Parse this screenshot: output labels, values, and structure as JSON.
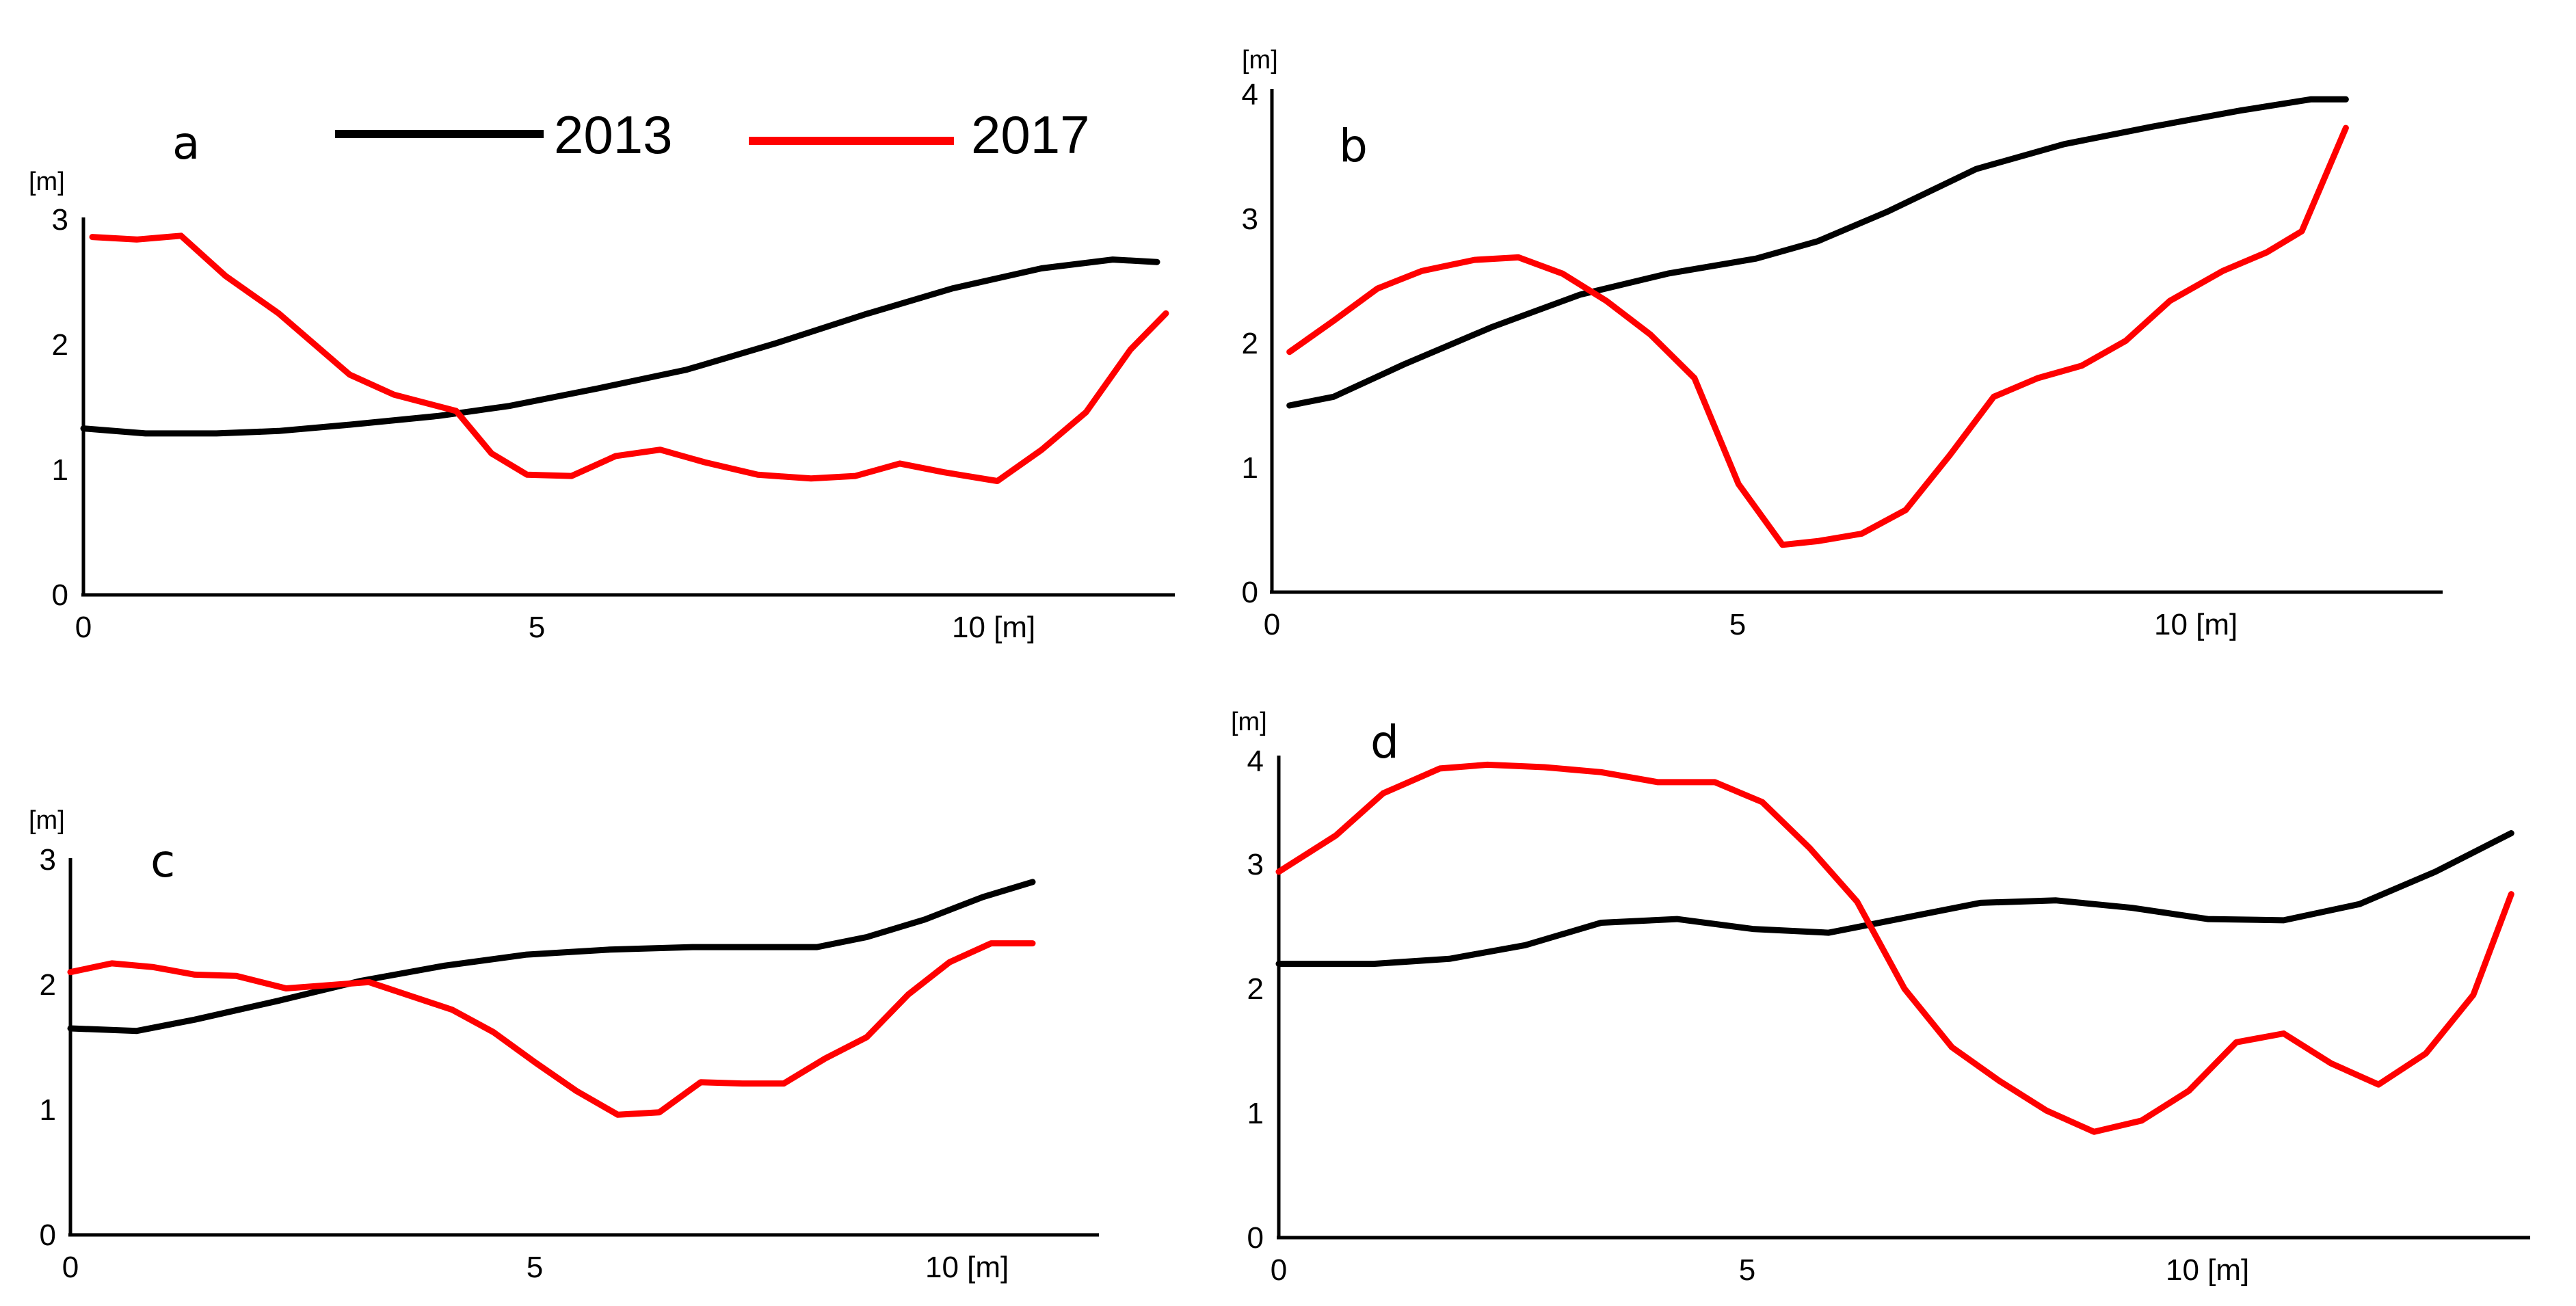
{
  "chart_data": [
    {
      "type": "line",
      "panel_label": "a",
      "y_unit_label": "[m]",
      "x_ticks": [
        "0",
        "5",
        "10 [m]"
      ],
      "y_ticks": [
        "0",
        "1",
        "2",
        "3"
      ],
      "xlim": [
        0,
        12.3
      ],
      "ylim": [
        0,
        3
      ],
      "series": [
        {
          "name": "2013",
          "color": "#000000",
          "x": [
            0,
            0.7,
            1.5,
            2.2,
            3.0,
            4.0,
            4.8,
            5.8,
            6.8,
            7.8,
            8.8,
            9.8,
            10.8,
            11.6,
            12.1
          ],
          "y": [
            1.33,
            1.29,
            1.29,
            1.31,
            1.36,
            1.43,
            1.51,
            1.65,
            1.8,
            2.01,
            2.24,
            2.45,
            2.61,
            2.68,
            2.66
          ]
        },
        {
          "name": "2017",
          "color": "#ff0000",
          "x": [
            0.1,
            0.6,
            1.1,
            1.6,
            2.2,
            3.0,
            3.5,
            4.2,
            4.6,
            5.0,
            5.5,
            6.0,
            6.5,
            7.0,
            7.6,
            8.2,
            8.7,
            9.2,
            9.7,
            10.3,
            10.8,
            11.3,
            11.8,
            12.2
          ],
          "y": [
            2.86,
            2.84,
            2.87,
            2.55,
            2.25,
            1.76,
            1.6,
            1.47,
            1.13,
            0.96,
            0.95,
            1.11,
            1.16,
            1.06,
            0.96,
            0.93,
            0.95,
            1.05,
            0.98,
            0.91,
            1.16,
            1.46,
            1.96,
            2.25
          ]
        }
      ]
    },
    {
      "type": "line",
      "panel_label": "b",
      "y_unit_label": "[m]",
      "x_ticks": [
        "0",
        "5",
        "10 [m]"
      ],
      "y_ticks": [
        "0",
        "1",
        "2",
        "3",
        "4"
      ],
      "xlim": [
        0,
        13.3
      ],
      "ylim": [
        0,
        4
      ],
      "series": [
        {
          "name": "2013",
          "color": "#000000",
          "x": [
            0.2,
            0.7,
            1.5,
            2.5,
            3.5,
            4.5,
            5.5,
            6.2,
            7.0,
            8.0,
            9.0,
            10.0,
            11.0,
            11.8,
            12.2
          ],
          "y": [
            1.5,
            1.57,
            1.83,
            2.13,
            2.39,
            2.56,
            2.68,
            2.82,
            3.06,
            3.4,
            3.6,
            3.74,
            3.87,
            3.96,
            3.96
          ]
        },
        {
          "name": "2017",
          "color": "#ff0000",
          "x": [
            0.2,
            0.7,
            1.2,
            1.7,
            2.3,
            2.8,
            3.3,
            3.8,
            4.3,
            4.8,
            5.3,
            5.8,
            6.2,
            6.7,
            7.2,
            7.7,
            8.2,
            8.7,
            9.2,
            9.7,
            10.2,
            10.8,
            11.3,
            11.7,
            12.2
          ],
          "y": [
            1.93,
            2.18,
            2.44,
            2.58,
            2.67,
            2.69,
            2.56,
            2.34,
            2.07,
            1.72,
            0.87,
            0.38,
            0.41,
            0.47,
            0.66,
            1.1,
            1.57,
            1.72,
            1.82,
            2.02,
            2.34,
            2.58,
            2.73,
            2.9,
            3.73
          ]
        }
      ]
    },
    {
      "type": "line",
      "panel_label": "c",
      "y_unit_label": "[m]",
      "x_ticks": [
        "0",
        "5",
        "10 [m]"
      ],
      "y_ticks": [
        "0",
        "1",
        "2",
        "3"
      ],
      "xlim": [
        0,
        12.4
      ],
      "ylim": [
        0,
        3
      ],
      "series": [
        {
          "name": "2013",
          "color": "#000000",
          "x": [
            0,
            0.8,
            1.5,
            2.5,
            3.5,
            4.5,
            5.5,
            6.5,
            7.5,
            8.5,
            9.0,
            9.6,
            10.3,
            11.0,
            11.6
          ],
          "y": [
            1.65,
            1.63,
            1.72,
            1.87,
            2.03,
            2.15,
            2.24,
            2.28,
            2.3,
            2.3,
            2.3,
            2.38,
            2.52,
            2.7,
            2.82
          ]
        },
        {
          "name": "2017",
          "color": "#ff0000",
          "x": [
            0,
            0.5,
            1.0,
            1.5,
            2.0,
            2.6,
            3.0,
            3.6,
            4.1,
            4.6,
            5.1,
            5.6,
            6.1,
            6.6,
            7.1,
            7.6,
            8.1,
            8.6,
            9.1,
            9.6,
            10.1,
            10.6,
            11.1,
            11.6
          ],
          "y": [
            2.1,
            2.17,
            2.14,
            2.08,
            2.07,
            1.97,
            1.99,
            2.02,
            1.91,
            1.8,
            1.62,
            1.38,
            1.15,
            0.96,
            0.98,
            1.22,
            1.21,
            1.21,
            1.41,
            1.58,
            1.92,
            2.18,
            2.33,
            2.33
          ]
        }
      ]
    },
    {
      "type": "line",
      "panel_label": "d",
      "y_unit_label": "[m]",
      "x_ticks": [
        "0",
        "5",
        "10 [m]"
      ],
      "y_ticks": [
        "0",
        "1",
        "2",
        "3",
        "4"
      ],
      "xlim": [
        0,
        13.2
      ],
      "ylim": [
        0,
        4
      ],
      "series": [
        {
          "name": "2013",
          "color": "#000000",
          "x": [
            0,
            1.0,
            1.8,
            2.6,
            3.4,
            4.2,
            5.0,
            5.8,
            6.6,
            7.4,
            8.2,
            9.0,
            9.8,
            10.6,
            11.4,
            12.2,
            13.0
          ],
          "y": [
            2.2,
            2.2,
            2.24,
            2.35,
            2.53,
            2.56,
            2.48,
            2.45,
            2.57,
            2.69,
            2.71,
            2.65,
            2.56,
            2.55,
            2.68,
            2.94,
            3.25
          ]
        },
        {
          "name": "2017",
          "color": "#ff0000",
          "x": [
            0,
            0.6,
            1.1,
            1.7,
            2.2,
            2.8,
            3.4,
            4.0,
            4.6,
            5.1,
            5.6,
            6.1,
            6.6,
            7.1,
            7.6,
            8.1,
            8.6,
            9.1,
            9.6,
            10.1,
            10.6,
            11.1,
            11.6,
            12.1,
            12.6,
            13.0
          ],
          "y": [
            2.94,
            3.23,
            3.57,
            3.77,
            3.8,
            3.78,
            3.74,
            3.66,
            3.66,
            3.5,
            3.13,
            2.7,
            2.0,
            1.53,
            1.26,
            1.02,
            0.85,
            0.94,
            1.18,
            1.57,
            1.64,
            1.4,
            1.23,
            1.48,
            1.95,
            2.76
          ]
        }
      ]
    }
  ],
  "legend": [
    {
      "label": "2013",
      "color": "#000000"
    },
    {
      "label": "2017",
      "color": "#ff0000"
    }
  ]
}
